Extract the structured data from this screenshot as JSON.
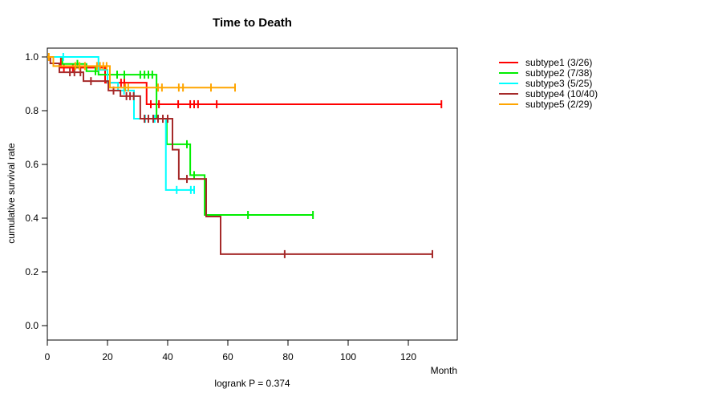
{
  "figure": {
    "title": "Time to Death",
    "xlabel": "Month",
    "ylabel": "cumulative survival rate",
    "subtitle": "logrank P = 0.374"
  },
  "chart_data": {
    "type": "line",
    "variant": "kaplan-meier-step",
    "title": "Time to Death",
    "xlabel": "Month",
    "ylabel": "cumulative survival rate",
    "annotation": "logrank P = 0.374",
    "xlim": [
      0,
      136
    ],
    "ylim": [
      0,
      1.04
    ],
    "xticks": [
      0,
      20,
      40,
      60,
      80,
      100,
      120
    ],
    "yticks": [
      0.0,
      0.2,
      0.4,
      0.6,
      0.8,
      1.0
    ],
    "grid": false,
    "legend_position": "right",
    "axis_color": "#000000",
    "series": [
      {
        "name": "subtype1 (3/26)",
        "events": 3,
        "total": 26,
        "color": "#FF0000",
        "end_time": 131,
        "steps": [
          [
            0,
            1
          ],
          [
            4.5,
            0.96
          ],
          [
            19.2,
            0.904
          ],
          [
            33,
            0.824
          ]
        ],
        "censors": [
          [
            5.5,
            0.96
          ],
          [
            8.5,
            0.96
          ],
          [
            24.5,
            0.904
          ],
          [
            25.6,
            0.904
          ],
          [
            34.4,
            0.824
          ],
          [
            37.1,
            0.824
          ],
          [
            43.5,
            0.824
          ],
          [
            47.5,
            0.824
          ],
          [
            48.8,
            0.824
          ],
          [
            50.1,
            0.824
          ],
          [
            56.3,
            0.824
          ],
          [
            131,
            0.824
          ]
        ]
      },
      {
        "name": "subtype2 (7/38)",
        "events": 7,
        "total": 38,
        "color": "#00EE00",
        "end_time": 88.3,
        "steps": [
          [
            0,
            1
          ],
          [
            5,
            0.974
          ],
          [
            13,
            0.947
          ],
          [
            17,
            0.934
          ],
          [
            36.3,
            0.77
          ],
          [
            39.7,
            0.675
          ],
          [
            47.5,
            0.56
          ],
          [
            52.3,
            0.412
          ]
        ],
        "censors": [
          [
            10,
            0.974
          ],
          [
            16,
            0.947
          ],
          [
            23.2,
            0.934
          ],
          [
            25.6,
            0.934
          ],
          [
            30.9,
            0.934
          ],
          [
            32.3,
            0.934
          ],
          [
            33.6,
            0.934
          ],
          [
            34.9,
            0.934
          ],
          [
            46.4,
            0.675
          ],
          [
            48.8,
            0.56
          ],
          [
            66.7,
            0.412
          ],
          [
            88.3,
            0.412
          ]
        ]
      },
      {
        "name": "subtype3 (5/25)",
        "events": 5,
        "total": 25,
        "color": "#00FFFF",
        "end_time": 48.8,
        "steps": [
          [
            0,
            1
          ],
          [
            17,
            0.952
          ],
          [
            20,
            0.904
          ],
          [
            23.5,
            0.875
          ],
          [
            28.8,
            0.77
          ],
          [
            39.4,
            0.505
          ]
        ],
        "censors": [
          [
            5.3,
            1
          ],
          [
            25.5,
            0.875
          ],
          [
            32.5,
            0.77
          ],
          [
            35.7,
            0.77
          ],
          [
            43,
            0.505
          ],
          [
            47.7,
            0.505
          ],
          [
            48.8,
            0.505
          ]
        ]
      },
      {
        "name": "subtype4 (10/40)",
        "events": 10,
        "total": 40,
        "color": "#A52A2A",
        "end_time": 128,
        "steps": [
          [
            0,
            1
          ],
          [
            1,
            0.976
          ],
          [
            4,
            0.943
          ],
          [
            12,
            0.91
          ],
          [
            20.3,
            0.875
          ],
          [
            24.3,
            0.854
          ],
          [
            30.9,
            0.77
          ],
          [
            41.6,
            0.655
          ],
          [
            43.7,
            0.546
          ],
          [
            52.8,
            0.406
          ],
          [
            57.6,
            0.266
          ]
        ],
        "censors": [
          [
            7.5,
            0.943
          ],
          [
            9,
            0.943
          ],
          [
            11,
            0.943
          ],
          [
            14.5,
            0.91
          ],
          [
            22,
            0.875
          ],
          [
            26.3,
            0.854
          ],
          [
            27.5,
            0.854
          ],
          [
            28.7,
            0.854
          ],
          [
            32.3,
            0.77
          ],
          [
            33.6,
            0.77
          ],
          [
            35.2,
            0.77
          ],
          [
            36.8,
            0.77
          ],
          [
            38.4,
            0.77
          ],
          [
            40,
            0.77
          ],
          [
            46.4,
            0.546
          ],
          [
            78.9,
            0.266
          ],
          [
            128,
            0.266
          ]
        ]
      },
      {
        "name": "subtype5 (2/29)",
        "events": 2,
        "total": 29,
        "color": "#FFA500",
        "end_time": 62.4,
        "steps": [
          [
            0,
            1
          ],
          [
            2,
            0.966
          ],
          [
            20.8,
            0.886
          ]
        ],
        "censors": [
          [
            0.5,
            1
          ],
          [
            9.3,
            0.966
          ],
          [
            10.7,
            0.966
          ],
          [
            12.5,
            0.966
          ],
          [
            16.5,
            0.966
          ],
          [
            17.5,
            0.966
          ],
          [
            18.6,
            0.966
          ],
          [
            19.7,
            0.966
          ],
          [
            25.9,
            0.886
          ],
          [
            26.9,
            0.886
          ],
          [
            36.8,
            0.886
          ],
          [
            38.1,
            0.886
          ],
          [
            43.7,
            0.886
          ],
          [
            45.1,
            0.886
          ],
          [
            54.4,
            0.886
          ],
          [
            62.4,
            0.886
          ]
        ]
      }
    ]
  }
}
